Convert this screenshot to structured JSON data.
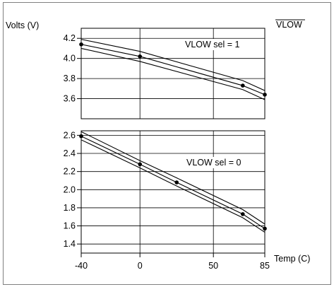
{
  "chart_data": [
    {
      "type": "line",
      "title": "VLOW",
      "title_overline": true,
      "ylabel": "Volts (V)",
      "xlabel": "",
      "ylim": [
        3.4,
        4.3
      ],
      "xlim": [
        -40,
        85
      ],
      "y_ticks": [
        3.6,
        3.8,
        4.0,
        4.2
      ],
      "y_tick_labels": [
        "3.6",
        "3.8",
        "4.0",
        "4.2"
      ],
      "grid": true,
      "annotation": "VLOW sel = 1",
      "series": [
        {
          "x": [
            -40,
            0,
            70,
            85
          ],
          "values": [
            4.19,
            4.07,
            3.78,
            3.68
          ]
        },
        {
          "x": [
            -40,
            0,
            70,
            85
          ],
          "values": [
            4.14,
            4.02,
            3.73,
            3.64
          ],
          "markers_at": [
            -40,
            0,
            70,
            85
          ]
        },
        {
          "x": [
            -40,
            0,
            70,
            85
          ],
          "values": [
            4.1,
            3.97,
            3.69,
            3.59
          ]
        }
      ]
    },
    {
      "type": "line",
      "title": "",
      "ylabel": "",
      "xlabel": "Temp (C)",
      "ylim": [
        1.3,
        2.65
      ],
      "xlim": [
        -40,
        85
      ],
      "y_ticks": [
        1.4,
        1.6,
        1.8,
        2.0,
        2.2,
        2.4,
        2.6
      ],
      "y_tick_labels": [
        "1.4",
        "1.6",
        "1.8",
        "2.0",
        "2.2",
        "2.4",
        "2.6"
      ],
      "x_ticks": [
        -40,
        0,
        50,
        85
      ],
      "x_tick_labels": [
        "-40",
        "0",
        "50",
        "85"
      ],
      "grid": true,
      "annotation": "VLOW sel = 0",
      "series": [
        {
          "x": [
            -40,
            0,
            25,
            70,
            85
          ],
          "values": [
            2.64,
            2.32,
            2.13,
            1.78,
            1.62
          ]
        },
        {
          "x": [
            -40,
            0,
            25,
            70,
            85
          ],
          "values": [
            2.59,
            2.28,
            2.08,
            1.73,
            1.57
          ],
          "markers_at": [
            -40,
            0,
            25,
            70,
            85
          ]
        },
        {
          "x": [
            -40,
            0,
            25,
            70,
            85
          ],
          "values": [
            2.55,
            2.24,
            2.04,
            1.69,
            1.53
          ]
        }
      ]
    }
  ]
}
